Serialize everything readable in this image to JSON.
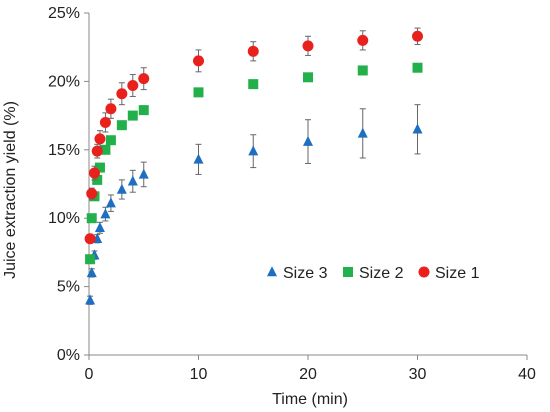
{
  "chart_data": {
    "type": "scatter",
    "xlabel": "Time (min)",
    "ylabel": "Juice extraction yield (%)",
    "xlim": [
      0,
      40
    ],
    "ylim": [
      0,
      25
    ],
    "x_ticks": [
      "0",
      "10",
      "20",
      "30",
      "40"
    ],
    "y_ticks": [
      "0%",
      "5%",
      "10%",
      "15%",
      "20%",
      "25%"
    ],
    "grid": false,
    "legend_placement": "lower-right",
    "series": [
      {
        "name": "Size 3",
        "marker": "triangle",
        "color": "#1f6fc0",
        "points": [
          {
            "x": 0.1,
            "y": 4.0
          },
          {
            "x": 0.25,
            "y": 6.0
          },
          {
            "x": 0.5,
            "y": 7.3
          },
          {
            "x": 0.75,
            "y": 8.5
          },
          {
            "x": 1,
            "y": 9.3
          },
          {
            "x": 1.5,
            "y": 10.3
          },
          {
            "x": 2,
            "y": 11.1
          },
          {
            "x": 3,
            "y": 12.1
          },
          {
            "x": 4,
            "y": 12.7
          },
          {
            "x": 5,
            "y": 13.2
          },
          {
            "x": 10,
            "y": 14.3
          },
          {
            "x": 15,
            "y": 14.9
          },
          {
            "x": 20,
            "y": 15.6
          },
          {
            "x": 25,
            "y": 16.2
          },
          {
            "x": 30,
            "y": 16.5
          }
        ],
        "errors": [
          0.3,
          0.3,
          0.3,
          0.3,
          0.4,
          0.5,
          0.6,
          0.7,
          0.8,
          0.9,
          1.1,
          1.2,
          1.6,
          1.8,
          1.8
        ]
      },
      {
        "name": "Size 2",
        "marker": "square",
        "color": "#22b04b",
        "points": [
          {
            "x": 0.1,
            "y": 7.0
          },
          {
            "x": 0.25,
            "y": 10.0
          },
          {
            "x": 0.5,
            "y": 11.6
          },
          {
            "x": 0.75,
            "y": 12.8
          },
          {
            "x": 1,
            "y": 13.7
          },
          {
            "x": 1.5,
            "y": 15.0
          },
          {
            "x": 2,
            "y": 15.7
          },
          {
            "x": 3,
            "y": 16.8
          },
          {
            "x": 4,
            "y": 17.5
          },
          {
            "x": 5,
            "y": 17.9
          },
          {
            "x": 10,
            "y": 19.2
          },
          {
            "x": 15,
            "y": 19.8
          },
          {
            "x": 20,
            "y": 20.3
          },
          {
            "x": 25,
            "y": 20.8
          },
          {
            "x": 30,
            "y": 21.0
          }
        ],
        "errors": [
          0,
          0,
          0,
          0,
          0,
          0,
          0,
          0,
          0,
          0,
          0,
          0,
          0,
          0,
          0
        ]
      },
      {
        "name": "Size 1",
        "marker": "circle",
        "color": "#e8211c",
        "points": [
          {
            "x": 0.1,
            "y": 8.5
          },
          {
            "x": 0.25,
            "y": 11.8
          },
          {
            "x": 0.5,
            "y": 13.3
          },
          {
            "x": 0.75,
            "y": 14.9
          },
          {
            "x": 1,
            "y": 15.8
          },
          {
            "x": 1.5,
            "y": 17.0
          },
          {
            "x": 2,
            "y": 18.0
          },
          {
            "x": 3,
            "y": 19.1
          },
          {
            "x": 4,
            "y": 19.7
          },
          {
            "x": 5,
            "y": 20.2
          },
          {
            "x": 10,
            "y": 21.5
          },
          {
            "x": 15,
            "y": 22.2
          },
          {
            "x": 20,
            "y": 22.6
          },
          {
            "x": 25,
            "y": 23.0
          },
          {
            "x": 30,
            "y": 23.3
          }
        ],
        "errors": [
          0.3,
          0.4,
          0.5,
          0.5,
          0.6,
          0.7,
          0.7,
          0.8,
          0.8,
          0.8,
          0.8,
          0.7,
          0.7,
          0.7,
          0.6
        ]
      }
    ]
  }
}
